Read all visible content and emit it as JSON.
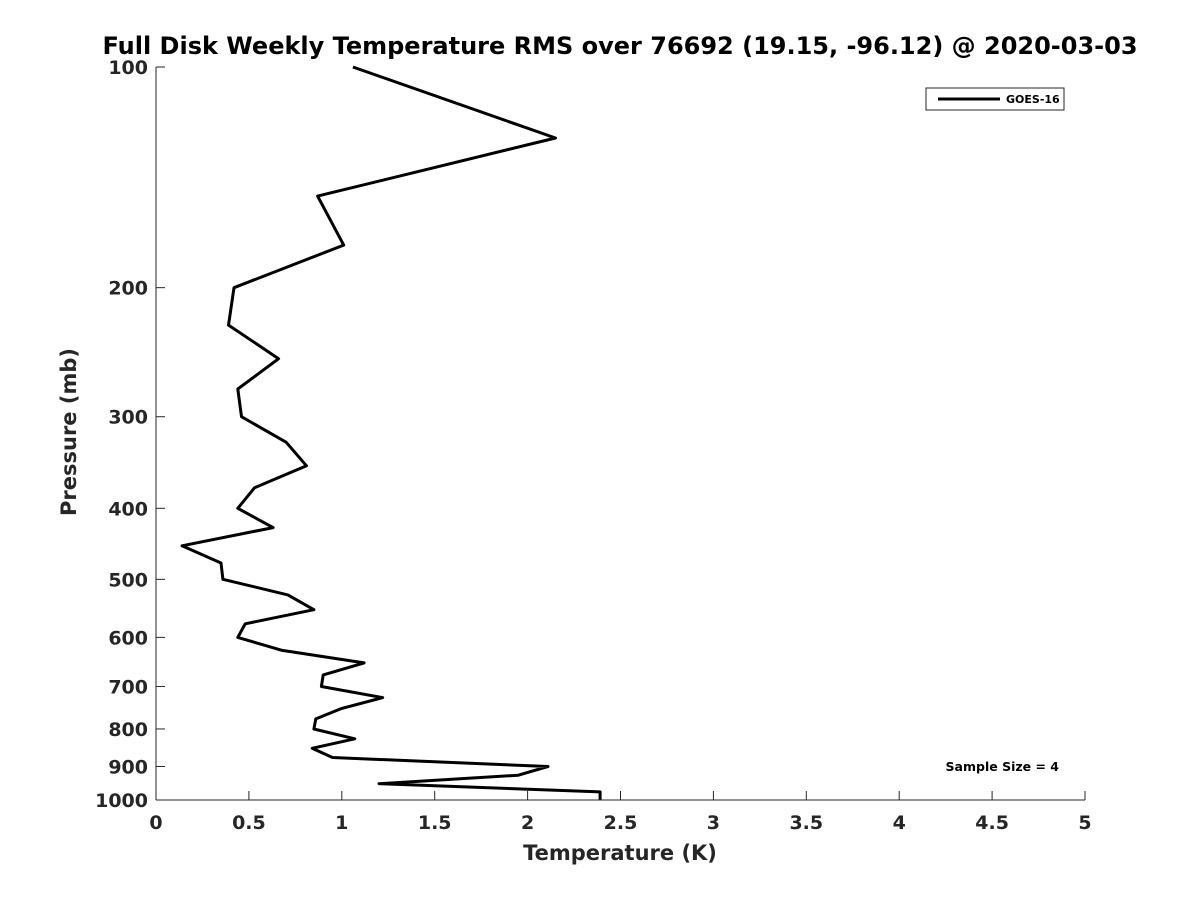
{
  "chart_data": {
    "type": "line",
    "title": "Full Disk Weekly Temperature RMS over 76692 (19.15, -96.12) @ 2020-03-03",
    "xlabel": "Temperature (K)",
    "ylabel": "Pressure (mb)",
    "xlim": [
      0,
      5
    ],
    "ylim": [
      100,
      1000
    ],
    "yscale": "log",
    "yreversed": true,
    "x_ticks": [
      0,
      0.5,
      1,
      1.5,
      2,
      2.5,
      3,
      3.5,
      4,
      4.5,
      5
    ],
    "x_tick_labels": [
      "0",
      "0.5",
      "1",
      "1.5",
      "2",
      "2.5",
      "3",
      "3.5",
      "4",
      "4.5",
      "5"
    ],
    "y_ticks": [
      100,
      200,
      300,
      400,
      500,
      600,
      700,
      800,
      900,
      1000
    ],
    "y_tick_labels": [
      "100",
      "200",
      "300",
      "400",
      "500",
      "600",
      "700",
      "800",
      "900",
      "1000"
    ],
    "grid": false,
    "legend_position": "top-right",
    "series": [
      {
        "name": "GOES-16",
        "color": "#000000",
        "points": [
          {
            "t": 1.06,
            "p": 100
          },
          {
            "t": 2.15,
            "p": 125
          },
          {
            "t": 0.87,
            "p": 150
          },
          {
            "t": 1.01,
            "p": 175
          },
          {
            "t": 0.42,
            "p": 200
          },
          {
            "t": 0.39,
            "p": 225
          },
          {
            "t": 0.66,
            "p": 250
          },
          {
            "t": 0.44,
            "p": 275
          },
          {
            "t": 0.46,
            "p": 300
          },
          {
            "t": 0.7,
            "p": 325
          },
          {
            "t": 0.81,
            "p": 350
          },
          {
            "t": 0.53,
            "p": 375
          },
          {
            "t": 0.44,
            "p": 400
          },
          {
            "t": 0.63,
            "p": 425
          },
          {
            "t": 0.14,
            "p": 450
          },
          {
            "t": 0.35,
            "p": 475
          },
          {
            "t": 0.36,
            "p": 500
          },
          {
            "t": 0.71,
            "p": 525
          },
          {
            "t": 0.85,
            "p": 550
          },
          {
            "t": 0.48,
            "p": 575
          },
          {
            "t": 0.44,
            "p": 600
          },
          {
            "t": 0.68,
            "p": 625
          },
          {
            "t": 1.12,
            "p": 650
          },
          {
            "t": 0.9,
            "p": 675
          },
          {
            "t": 0.89,
            "p": 700
          },
          {
            "t": 1.22,
            "p": 725
          },
          {
            "t": 1.0,
            "p": 750
          },
          {
            "t": 0.86,
            "p": 775
          },
          {
            "t": 0.85,
            "p": 800
          },
          {
            "t": 1.07,
            "p": 825
          },
          {
            "t": 0.84,
            "p": 850
          },
          {
            "t": 0.95,
            "p": 875
          },
          {
            "t": 2.11,
            "p": 900
          },
          {
            "t": 1.95,
            "p": 925
          },
          {
            "t": 1.2,
            "p": 950
          },
          {
            "t": 2.39,
            "p": 975
          },
          {
            "t": 2.39,
            "p": 1000
          }
        ]
      }
    ],
    "annotations": [
      "Sample Size = 4"
    ]
  }
}
